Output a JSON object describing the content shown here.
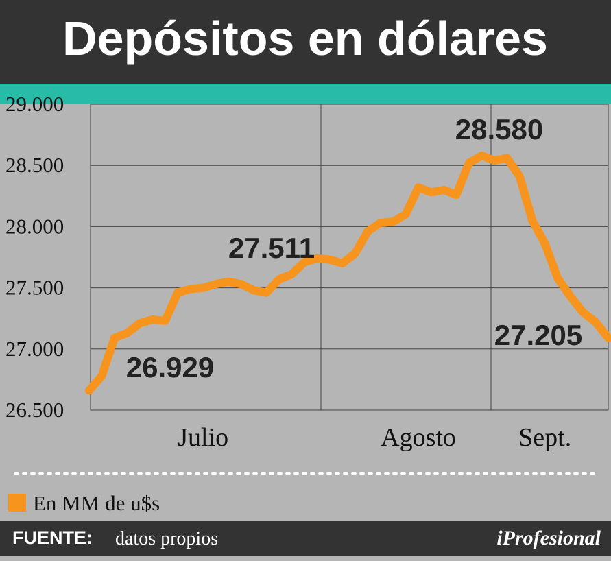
{
  "chart_data": {
    "type": "line",
    "title": "Depósitos en dólares",
    "categories": [
      null,
      null,
      null,
      null,
      null,
      null,
      null,
      null,
      null,
      "Julio",
      null,
      null,
      null,
      null,
      null,
      null,
      null,
      null,
      null,
      null,
      null,
      null,
      null,
      null,
      null,
      null,
      "Agosto",
      null,
      null,
      null,
      null,
      null,
      null,
      null,
      null,
      null,
      "Sept.",
      null,
      null,
      null,
      null,
      null
    ],
    "series": [
      {
        "name": "En MM de u$s",
        "color": "#f7941d",
        "values": [
          26660,
          26780,
          27090,
          27130,
          27210,
          27240,
          27230,
          27460,
          27490,
          27500,
          27530,
          27550,
          27530,
          27480,
          27460,
          27570,
          27610,
          27710,
          27740,
          27730,
          27700,
          27780,
          27960,
          28030,
          28040,
          28100,
          28320,
          28280,
          28300,
          28260,
          28520,
          28580,
          28540,
          28560,
          28410,
          28050,
          27860,
          27580,
          27430,
          27300,
          27220,
          27090
        ]
      }
    ],
    "ylim": [
      26500,
      29000
    ],
    "yticks": [
      {
        "value": 26500,
        "label": "26.500"
      },
      {
        "value": 27000,
        "label": "27.000"
      },
      {
        "value": 27500,
        "label": "27.500"
      },
      {
        "value": 28000,
        "label": "28.000"
      },
      {
        "value": 28500,
        "label": "28.500"
      },
      {
        "value": 29000,
        "label": "29.000"
      }
    ],
    "grid": true,
    "annotations": [
      "26.929",
      "27.511",
      "28.580",
      "27.205"
    ],
    "source_label": "FUENTE:",
    "source": "datos propios",
    "brand": "iProfesional"
  }
}
